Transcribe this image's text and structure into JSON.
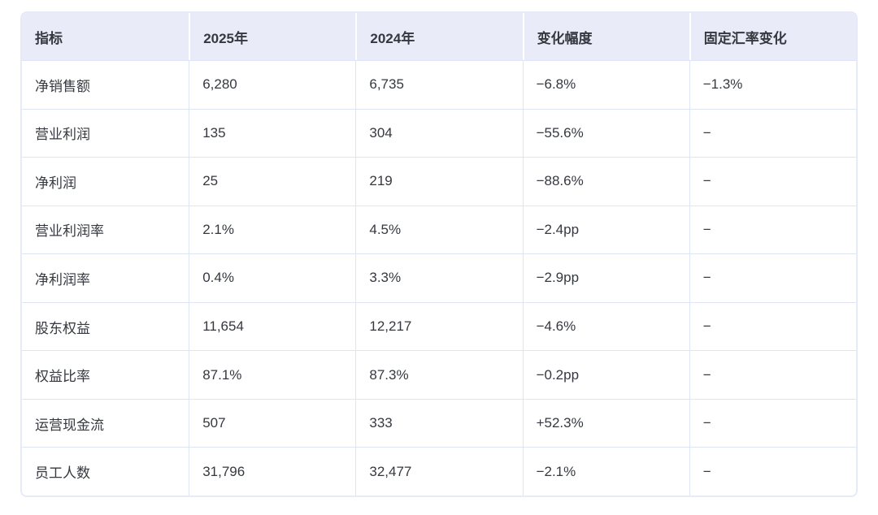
{
  "chart_data": {
    "type": "table",
    "title": "",
    "columns": [
      "指标",
      "2025年",
      "2024年",
      "变化幅度",
      "固定汇率变化"
    ],
    "rows": [
      [
        "净销售额",
        "6,280",
        "6,735",
        "−6.8%",
        "−1.3%"
      ],
      [
        "营业利润",
        "135",
        "304",
        "−55.6%",
        "−"
      ],
      [
        "净利润",
        "25",
        "219",
        "−88.6%",
        "−"
      ],
      [
        "营业利润率",
        "2.1%",
        "4.5%",
        "−2.4pp",
        "−"
      ],
      [
        "净利润率",
        "0.4%",
        "3.3%",
        "−2.9pp",
        "−"
      ],
      [
        "股东权益",
        "11,654",
        "12,217",
        "−4.6%",
        "−"
      ],
      [
        "权益比率",
        "87.1%",
        "87.3%",
        "−0.2pp",
        "−"
      ],
      [
        "运营现金流",
        "507",
        "333",
        "+52.3%",
        "−"
      ],
      [
        "员工人数",
        "31,796",
        "32,477",
        "−2.1%",
        "−"
      ]
    ],
    "colors": {
      "header_bg": "#e9ebf8",
      "grid_line": "#dfe5f7",
      "outer_border": "#e7eaf7",
      "text": "#35383f",
      "cell_bg": "#ffffff"
    },
    "layout": {
      "grid": true,
      "header_position": "top",
      "column_count": 5,
      "row_count": 9
    }
  }
}
